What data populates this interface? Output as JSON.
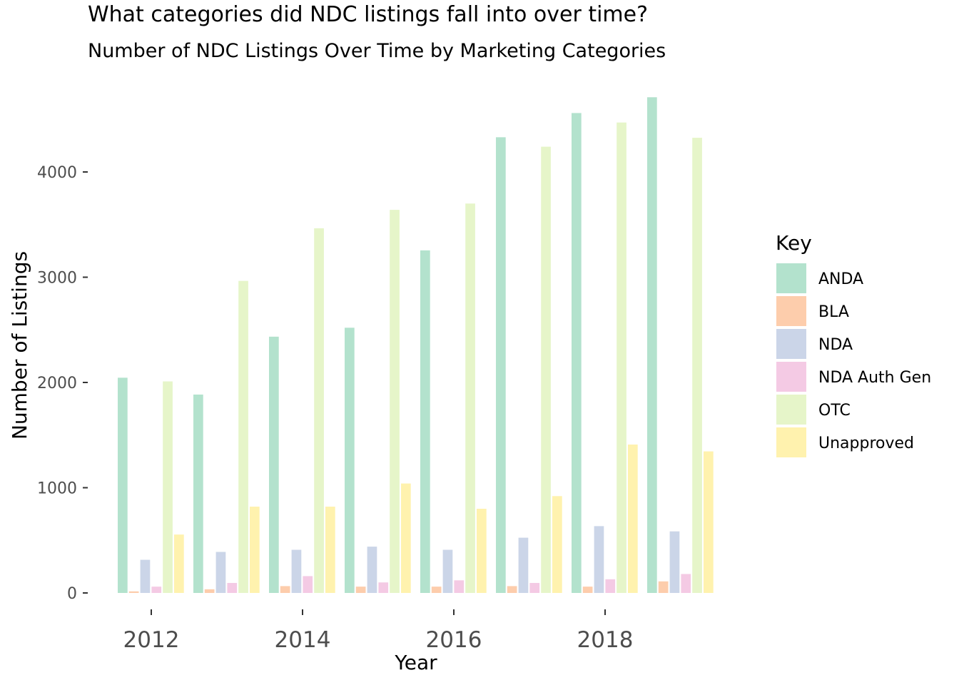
{
  "chart_data": {
    "type": "bar",
    "title": "What categories did NDC listings fall into over time?",
    "subtitle": "Number of NDC Listings Over Time by Marketing Categories",
    "xlabel": "Year",
    "ylabel": "Number of Listings",
    "categories": [
      2012,
      2013,
      2014,
      2015,
      2016,
      2017,
      2018,
      2019
    ],
    "x_ticks": [
      "2012",
      "2014",
      "2016",
      "2018"
    ],
    "x_tick_values": [
      2012,
      2014,
      2016,
      2018
    ],
    "y_ticks": [
      "0",
      "1000",
      "2000",
      "3000",
      "4000"
    ],
    "y_tick_values": [
      0,
      1000,
      2000,
      3000,
      4000
    ],
    "ylim": [
      0,
      4700
    ],
    "grid": false,
    "legend": {
      "title": "Key",
      "position": "right"
    },
    "series": [
      {
        "name": "ANDA",
        "color": "#b3e2cd",
        "values": [
          2045,
          1885,
          2435,
          2520,
          3255,
          4330,
          4560,
          4710
        ]
      },
      {
        "name": "BLA",
        "color": "#fdcdac",
        "values": [
          15,
          35,
          65,
          60,
          60,
          65,
          60,
          110
        ]
      },
      {
        "name": "NDA",
        "color": "#cbd5e8",
        "values": [
          315,
          390,
          410,
          440,
          410,
          525,
          635,
          585
        ]
      },
      {
        "name": "NDA Auth Gen",
        "color": "#f4cae4",
        "values": [
          60,
          95,
          160,
          100,
          120,
          95,
          130,
          180
        ]
      },
      {
        "name": "OTC",
        "color": "#e6f5c9",
        "values": [
          2010,
          2965,
          3465,
          3640,
          3700,
          4240,
          4470,
          4325
        ]
      },
      {
        "name": "Unapproved",
        "color": "#fff2ae",
        "values": [
          555,
          820,
          820,
          1040,
          800,
          920,
          1410,
          1345
        ]
      }
    ]
  }
}
